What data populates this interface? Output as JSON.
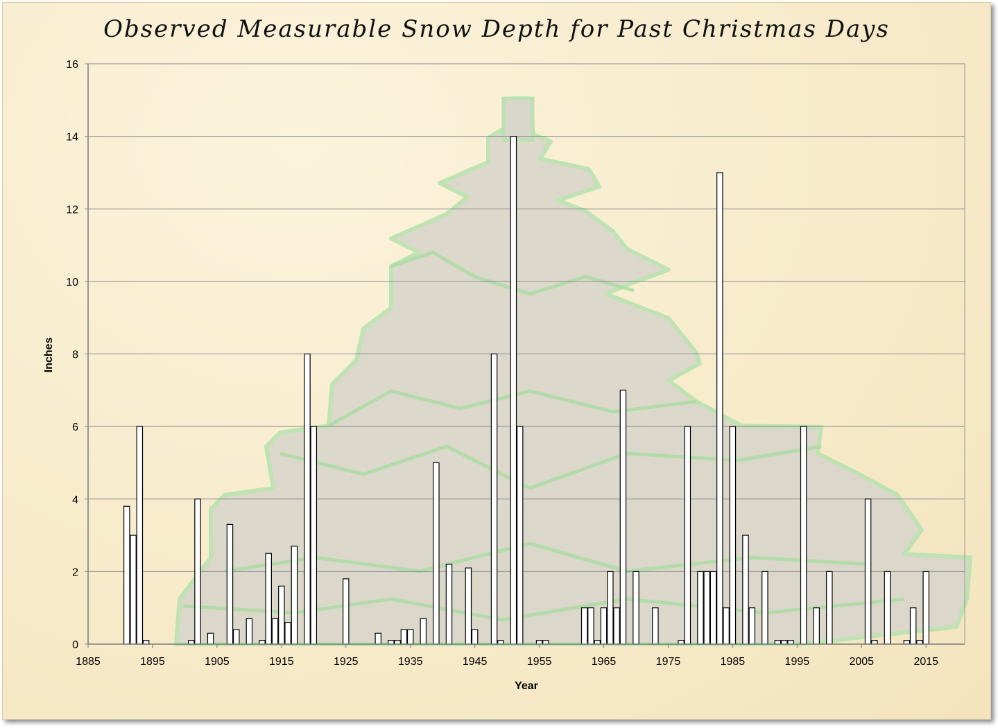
{
  "chart_data": {
    "type": "bar",
    "title": "Observed Measurable Snow Depth for Past Christmas Days",
    "xlabel": "Year",
    "ylabel": "Inches",
    "xlim": [
      1885,
      2021
    ],
    "ylim": [
      0,
      16
    ],
    "x_ticks": [
      1885,
      1895,
      1905,
      1915,
      1925,
      1935,
      1945,
      1955,
      1965,
      1975,
      1985,
      1995,
      2005,
      2015
    ],
    "y_ticks": [
      0,
      2,
      4,
      6,
      8,
      10,
      12,
      14,
      16
    ],
    "grid": "horizontal",
    "background_image": "christmas-tree",
    "bar_color": "#ffffff",
    "bar_edge_color": "#000000",
    "series": [
      {
        "x": [
          1891,
          1892,
          1893,
          1894,
          1901,
          1902,
          1904,
          1907,
          1908,
          1910,
          1912,
          1913,
          1914,
          1915,
          1916,
          1917,
          1919,
          1920,
          1925,
          1930,
          1932,
          1933,
          1934,
          1935,
          1937,
          1939,
          1941,
          1944,
          1945,
          1948,
          1949,
          1951,
          1952,
          1955,
          1956,
          1962,
          1963,
          1964,
          1965,
          1966,
          1967,
          1968,
          1970,
          1973,
          1977,
          1978,
          1980,
          1981,
          1982,
          1983,
          1984,
          1985,
          1987,
          1988,
          1990,
          1992,
          1993,
          1994,
          1996,
          1998,
          2000,
          2006,
          2007,
          2009,
          2012,
          2013,
          2014,
          2015
        ],
        "values": [
          3.8,
          3,
          6,
          0.1,
          0.1,
          4,
          0.3,
          3.3,
          0.4,
          0.7,
          0.1,
          2.5,
          0.7,
          1.6,
          0.6,
          2.7,
          8,
          6,
          1.8,
          0.3,
          0.1,
          0.1,
          0.4,
          0.4,
          0.7,
          5,
          2.2,
          2.1,
          0.4,
          8,
          0.1,
          14,
          6,
          0.1,
          0.1,
          1,
          1,
          0.1,
          1,
          2,
          1,
          7,
          2,
          1,
          0.1,
          6,
          2,
          2,
          2,
          13,
          1,
          6,
          3,
          1,
          2,
          0.1,
          0.1,
          0.1,
          6,
          1,
          2,
          4,
          0.1,
          2,
          0.1,
          1,
          0.1,
          2
        ]
      }
    ]
  }
}
